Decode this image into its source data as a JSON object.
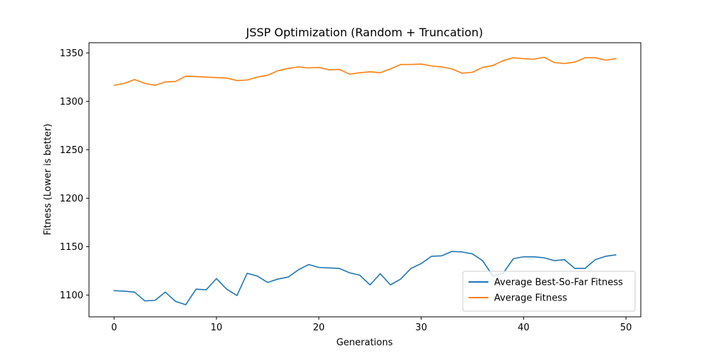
{
  "chart_data": {
    "type": "line",
    "title": "JSSP Optimization (Random + Truncation)",
    "xlabel": "Generations",
    "ylabel": "Fitness (Lower is better)",
    "xlim": [
      -2.45,
      51.45
    ],
    "ylim": [
      1077.5,
      1360.5
    ],
    "xticks": [
      0,
      10,
      20,
      30,
      40,
      50
    ],
    "yticks": [
      1100,
      1150,
      1200,
      1250,
      1300,
      1350
    ],
    "grid": false,
    "legend_position": "lower-right",
    "x": [
      0,
      1,
      2,
      3,
      4,
      5,
      6,
      7,
      8,
      9,
      10,
      11,
      12,
      13,
      14,
      15,
      16,
      17,
      18,
      19,
      20,
      21,
      22,
      23,
      24,
      25,
      26,
      27,
      28,
      29,
      30,
      31,
      32,
      33,
      34,
      35,
      36,
      37,
      38,
      39,
      40,
      41,
      42,
      43,
      44,
      45,
      46,
      47,
      48,
      49
    ],
    "series": [
      {
        "name": "Average Best-So-Far Fitness",
        "color": "#1f77b4",
        "values": [
          1104.5,
          1104,
          1103,
          1094,
          1094.5,
          1103,
          1093.5,
          1090,
          1106,
          1105.5,
          1117,
          1106,
          1099.5,
          1122.5,
          1119.5,
          1113,
          1116.5,
          1118.5,
          1126,
          1131.5,
          1128.5,
          1128,
          1127.5,
          1123,
          1120.5,
          1110.5,
          1122,
          1110.5,
          1116.5,
          1127.5,
          1132.5,
          1140,
          1140.5,
          1145,
          1144.5,
          1142.5,
          1135.5,
          1119.5,
          1122.5,
          1137.5,
          1139.5,
          1139.5,
          1138.5,
          1135.5,
          1136.5,
          1127.5,
          1127.5,
          1136.5,
          1140,
          1141.5
        ]
      },
      {
        "name": "Average Fitness",
        "color": "#ff7f0e",
        "values": [
          1316.5,
          1318.5,
          1322.5,
          1318.5,
          1316.5,
          1320,
          1320.5,
          1326,
          1325.5,
          1325,
          1324.5,
          1324,
          1321.5,
          1322,
          1325,
          1327,
          1331.5,
          1334,
          1335.5,
          1334.5,
          1335,
          1332.5,
          1333,
          1328,
          1329.5,
          1330.5,
          1329.5,
          1333.5,
          1338,
          1338,
          1338.5,
          1336.5,
          1335.5,
          1333.5,
          1329,
          1330,
          1335,
          1337,
          1342,
          1345,
          1344,
          1343.5,
          1345.5,
          1340,
          1339,
          1340.5,
          1345,
          1345,
          1342.5,
          1344
        ]
      }
    ]
  }
}
